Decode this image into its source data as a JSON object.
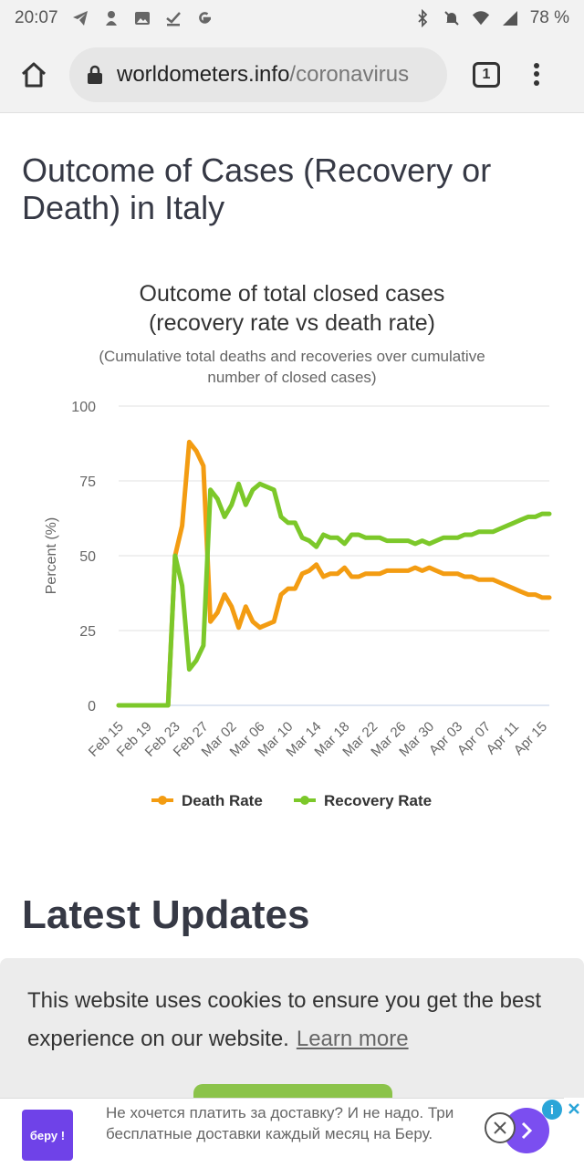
{
  "status_bar": {
    "time": "20:07",
    "battery": "78 %",
    "icons_left": [
      "telegram-icon",
      "notification-icon",
      "image-icon",
      "download-done-icon",
      "google-icon"
    ],
    "icons_right": [
      "bluetooth-icon",
      "mute-icon",
      "wifi-icon",
      "signal-icon"
    ]
  },
  "browser": {
    "url_domain": "worldometers.info",
    "url_path": "/coronavirus",
    "tab_count": "1"
  },
  "section": {
    "title": "Outcome of Cases (Recovery or Death) in Italy"
  },
  "chart": {
    "title_line1": "Outcome of total closed cases",
    "title_line2": "(recovery rate vs death rate)",
    "subtitle_line1": "(Cumulative total deaths and recoveries over cumulative",
    "subtitle_line2": "number of closed cases)"
  },
  "chart_data": {
    "type": "line",
    "title": "Outcome of total closed cases (recovery rate vs death rate)",
    "subtitle": "(Cumulative total deaths and recoveries over cumulative number of closed cases)",
    "ylabel": "Percent (%)",
    "xlabel": "",
    "ylim": [
      0,
      100
    ],
    "yticks": [
      0,
      25,
      50,
      75,
      100
    ],
    "x_tick_labels": [
      "Feb 15",
      "Feb 19",
      "Feb 23",
      "Feb 27",
      "Mar 02",
      "Mar 06",
      "Mar 10",
      "Mar 14",
      "Mar 18",
      "Mar 22",
      "Mar 26",
      "Mar 30",
      "Apr 03",
      "Apr 07",
      "Apr 11",
      "Apr 15"
    ],
    "x_start": "Feb 15",
    "x_end": "Apr 16",
    "legend_position": "bottom",
    "grid": true,
    "series": [
      {
        "name": "Death Rate",
        "color": "#f39c12",
        "points": [
          {
            "x": "Feb 15",
            "y": 0
          },
          {
            "x": "Feb 22",
            "y": 0
          },
          {
            "x": "Feb 23",
            "y": 50
          },
          {
            "x": "Feb 24",
            "y": 60
          },
          {
            "x": "Feb 25",
            "y": 88
          },
          {
            "x": "Feb 26",
            "y": 85
          },
          {
            "x": "Feb 27",
            "y": 80
          },
          {
            "x": "Feb 28",
            "y": 28
          },
          {
            "x": "Feb 29",
            "y": 31
          },
          {
            "x": "Mar 01",
            "y": 37
          },
          {
            "x": "Mar 02",
            "y": 33
          },
          {
            "x": "Mar 03",
            "y": 26
          },
          {
            "x": "Mar 04",
            "y": 33
          },
          {
            "x": "Mar 05",
            "y": 28
          },
          {
            "x": "Mar 06",
            "y": 26
          },
          {
            "x": "Mar 07",
            "y": 27
          },
          {
            "x": "Mar 08",
            "y": 28
          },
          {
            "x": "Mar 09",
            "y": 37
          },
          {
            "x": "Mar 10",
            "y": 39
          },
          {
            "x": "Mar 11",
            "y": 39
          },
          {
            "x": "Mar 12",
            "y": 44
          },
          {
            "x": "Mar 13",
            "y": 45
          },
          {
            "x": "Mar 14",
            "y": 47
          },
          {
            "x": "Mar 15",
            "y": 43
          },
          {
            "x": "Mar 16",
            "y": 44
          },
          {
            "x": "Mar 17",
            "y": 44
          },
          {
            "x": "Mar 18",
            "y": 46
          },
          {
            "x": "Mar 19",
            "y": 43
          },
          {
            "x": "Mar 20",
            "y": 43
          },
          {
            "x": "Mar 21",
            "y": 44
          },
          {
            "x": "Mar 22",
            "y": 44
          },
          {
            "x": "Mar 23",
            "y": 44
          },
          {
            "x": "Mar 24",
            "y": 45
          },
          {
            "x": "Mar 25",
            "y": 45
          },
          {
            "x": "Mar 26",
            "y": 45
          },
          {
            "x": "Mar 27",
            "y": 45
          },
          {
            "x": "Mar 28",
            "y": 46
          },
          {
            "x": "Mar 29",
            "y": 45
          },
          {
            "x": "Mar 30",
            "y": 46
          },
          {
            "x": "Mar 31",
            "y": 45
          },
          {
            "x": "Apr 01",
            "y": 44
          },
          {
            "x": "Apr 02",
            "y": 44
          },
          {
            "x": "Apr 03",
            "y": 44
          },
          {
            "x": "Apr 04",
            "y": 43
          },
          {
            "x": "Apr 05",
            "y": 43
          },
          {
            "x": "Apr 06",
            "y": 42
          },
          {
            "x": "Apr 07",
            "y": 42
          },
          {
            "x": "Apr 08",
            "y": 42
          },
          {
            "x": "Apr 09",
            "y": 41
          },
          {
            "x": "Apr 10",
            "y": 40
          },
          {
            "x": "Apr 11",
            "y": 39
          },
          {
            "x": "Apr 12",
            "y": 38
          },
          {
            "x": "Apr 13",
            "y": 37
          },
          {
            "x": "Apr 14",
            "y": 37
          },
          {
            "x": "Apr 15",
            "y": 36
          },
          {
            "x": "Apr 16",
            "y": 36
          }
        ]
      },
      {
        "name": "Recovery Rate",
        "color": "#7cc82a",
        "points": [
          {
            "x": "Feb 15",
            "y": 0
          },
          {
            "x": "Feb 22",
            "y": 0
          },
          {
            "x": "Feb 23",
            "y": 50
          },
          {
            "x": "Feb 24",
            "y": 40
          },
          {
            "x": "Feb 25",
            "y": 12
          },
          {
            "x": "Feb 26",
            "y": 15
          },
          {
            "x": "Feb 27",
            "y": 20
          },
          {
            "x": "Feb 28",
            "y": 72
          },
          {
            "x": "Feb 29",
            "y": 69
          },
          {
            "x": "Mar 01",
            "y": 63
          },
          {
            "x": "Mar 02",
            "y": 67
          },
          {
            "x": "Mar 03",
            "y": 74
          },
          {
            "x": "Mar 04",
            "y": 67
          },
          {
            "x": "Mar 05",
            "y": 72
          },
          {
            "x": "Mar 06",
            "y": 74
          },
          {
            "x": "Mar 07",
            "y": 73
          },
          {
            "x": "Mar 08",
            "y": 72
          },
          {
            "x": "Mar 09",
            "y": 63
          },
          {
            "x": "Mar 10",
            "y": 61
          },
          {
            "x": "Mar 11",
            "y": 61
          },
          {
            "x": "Mar 12",
            "y": 56
          },
          {
            "x": "Mar 13",
            "y": 55
          },
          {
            "x": "Mar 14",
            "y": 53
          },
          {
            "x": "Mar 15",
            "y": 57
          },
          {
            "x": "Mar 16",
            "y": 56
          },
          {
            "x": "Mar 17",
            "y": 56
          },
          {
            "x": "Mar 18",
            "y": 54
          },
          {
            "x": "Mar 19",
            "y": 57
          },
          {
            "x": "Mar 20",
            "y": 57
          },
          {
            "x": "Mar 21",
            "y": 56
          },
          {
            "x": "Mar 22",
            "y": 56
          },
          {
            "x": "Mar 23",
            "y": 56
          },
          {
            "x": "Mar 24",
            "y": 55
          },
          {
            "x": "Mar 25",
            "y": 55
          },
          {
            "x": "Mar 26",
            "y": 55
          },
          {
            "x": "Mar 27",
            "y": 55
          },
          {
            "x": "Mar 28",
            "y": 54
          },
          {
            "x": "Mar 29",
            "y": 55
          },
          {
            "x": "Mar 30",
            "y": 54
          },
          {
            "x": "Mar 31",
            "y": 55
          },
          {
            "x": "Apr 01",
            "y": 56
          },
          {
            "x": "Apr 02",
            "y": 56
          },
          {
            "x": "Apr 03",
            "y": 56
          },
          {
            "x": "Apr 04",
            "y": 57
          },
          {
            "x": "Apr 05",
            "y": 57
          },
          {
            "x": "Apr 06",
            "y": 58
          },
          {
            "x": "Apr 07",
            "y": 58
          },
          {
            "x": "Apr 08",
            "y": 58
          },
          {
            "x": "Apr 09",
            "y": 59
          },
          {
            "x": "Apr 10",
            "y": 60
          },
          {
            "x": "Apr 11",
            "y": 61
          },
          {
            "x": "Apr 12",
            "y": 62
          },
          {
            "x": "Apr 13",
            "y": 63
          },
          {
            "x": "Apr 14",
            "y": 63
          },
          {
            "x": "Apr 15",
            "y": 64
          },
          {
            "x": "Apr 16",
            "y": 64
          }
        ]
      }
    ]
  },
  "latest": {
    "title": "Latest Updates"
  },
  "cookie": {
    "text": "This website uses cookies to ensure you get the best experience on our website.",
    "link": "Learn more",
    "accept_color": "#8bc34a"
  },
  "ad": {
    "logo_text": "беру !",
    "text": "Не хочется платить за доставку? И не надо. Три бесплатные доставки каждый месяц на Беру.",
    "brand_color": "#6f42e8"
  }
}
